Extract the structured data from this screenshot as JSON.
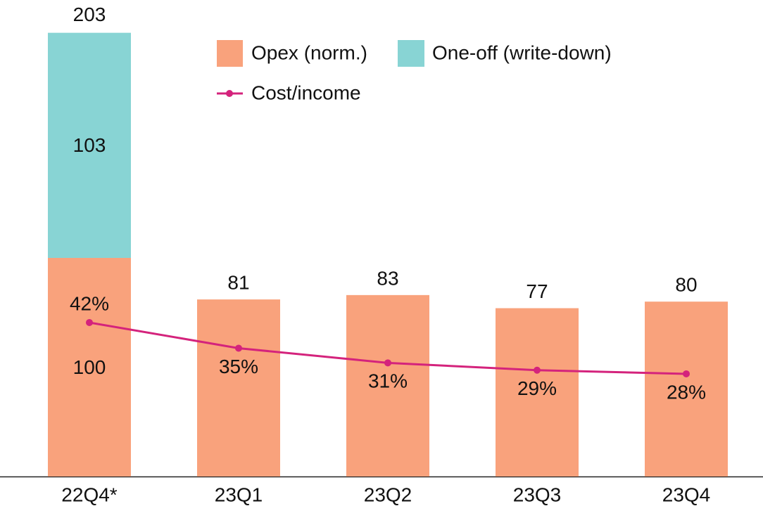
{
  "chart_data": {
    "type": "bar",
    "categories": [
      "22Q4*",
      "23Q1",
      "23Q2",
      "23Q3",
      "23Q4"
    ],
    "series": [
      {
        "name": "Opex (norm.)",
        "color": "#f9a27c",
        "values": [
          100,
          81,
          83,
          77,
          80
        ]
      },
      {
        "name": "One-off (write-down)",
        "color": "#88d4d4",
        "values": [
          103,
          null,
          null,
          null,
          null
        ]
      },
      {
        "name": "Cost/income",
        "color": "#d4237c",
        "type": "line",
        "axis": "y2",
        "values": [
          42,
          35,
          31,
          29,
          28
        ],
        "value_labels": [
          "42%",
          "35%",
          "31%",
          "29%",
          "28%"
        ]
      }
    ],
    "totals": [
      203,
      null,
      null,
      null,
      null
    ],
    "stacked": true,
    "ylim": [
      0,
      218
    ],
    "y2lim": [
      0,
      130
    ]
  }
}
